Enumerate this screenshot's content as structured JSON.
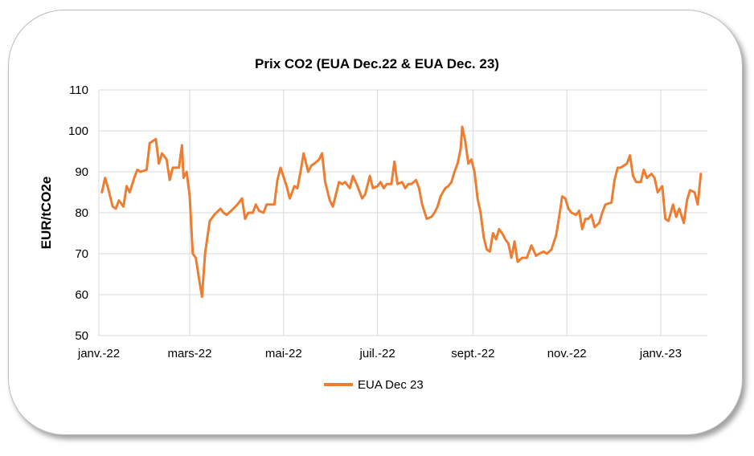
{
  "chart_data": {
    "type": "line",
    "title": "Prix CO2 (EUA Dec.22 & EUA Dec. 23)",
    "xlabel": "",
    "ylabel": "EUR/tCO2e",
    "ylim": [
      50,
      110
    ],
    "yticks": [
      "50",
      "60",
      "70",
      "80",
      "90",
      "100",
      "110"
    ],
    "xticks": [
      {
        "label": "janv.-22",
        "date": "2022-01-01"
      },
      {
        "label": "mars-22",
        "date": "2022-03-01"
      },
      {
        "label": "mai-22",
        "date": "2022-05-01"
      },
      {
        "label": "juil.-22",
        "date": "2022-07-01"
      },
      {
        "label": "sept.-22",
        "date": "2022-09-01"
      },
      {
        "label": "nov.-22",
        "date": "2022-11-01"
      },
      {
        "label": "janv.-23",
        "date": "2023-01-01"
      }
    ],
    "grid": true,
    "legend_position": "bottom",
    "series": [
      {
        "name": "EUA Dec 23",
        "color": "#ed7d31",
        "points": [
          [
            "2022-01-03",
            85
          ],
          [
            "2022-01-05",
            88.5
          ],
          [
            "2022-01-07",
            86
          ],
          [
            "2022-01-10",
            81.5
          ],
          [
            "2022-01-12",
            81
          ],
          [
            "2022-01-14",
            83
          ],
          [
            "2022-01-17",
            81.5
          ],
          [
            "2022-01-19",
            86.5
          ],
          [
            "2022-01-21",
            85
          ],
          [
            "2022-01-24",
            88.5
          ],
          [
            "2022-01-26",
            90.5
          ],
          [
            "2022-01-28",
            90
          ],
          [
            "2022-02-01",
            90.5
          ],
          [
            "2022-02-03",
            97
          ],
          [
            "2022-02-07",
            98
          ],
          [
            "2022-02-09",
            92
          ],
          [
            "2022-02-11",
            94.5
          ],
          [
            "2022-02-14",
            93
          ],
          [
            "2022-02-16",
            88
          ],
          [
            "2022-02-18",
            91
          ],
          [
            "2022-02-22",
            91
          ],
          [
            "2022-02-24",
            96.5
          ],
          [
            "2022-02-25",
            88.5
          ],
          [
            "2022-02-27",
            90
          ],
          [
            "2022-03-01",
            84
          ],
          [
            "2022-03-03",
            70
          ],
          [
            "2022-03-05",
            69
          ],
          [
            "2022-03-07",
            64
          ],
          [
            "2022-03-09",
            59.5
          ],
          [
            "2022-03-11",
            70
          ],
          [
            "2022-03-14",
            78
          ],
          [
            "2022-03-17",
            79.5
          ],
          [
            "2022-03-21",
            81
          ],
          [
            "2022-03-23",
            80
          ],
          [
            "2022-03-25",
            79.5
          ],
          [
            "2022-03-28",
            80.5
          ],
          [
            "2022-04-01",
            82
          ],
          [
            "2022-04-04",
            83.5
          ],
          [
            "2022-04-06",
            78.5
          ],
          [
            "2022-04-08",
            80
          ],
          [
            "2022-04-11",
            80
          ],
          [
            "2022-04-13",
            82
          ],
          [
            "2022-04-15",
            80.5
          ],
          [
            "2022-04-18",
            80
          ],
          [
            "2022-04-20",
            82
          ],
          [
            "2022-04-22",
            82
          ],
          [
            "2022-04-25",
            82
          ],
          [
            "2022-04-27",
            88
          ],
          [
            "2022-04-29",
            91
          ],
          [
            "2022-05-03",
            86.5
          ],
          [
            "2022-05-05",
            83.5
          ],
          [
            "2022-05-08",
            86.5
          ],
          [
            "2022-05-10",
            86
          ],
          [
            "2022-05-12",
            90
          ],
          [
            "2022-05-14",
            94.5
          ],
          [
            "2022-05-17",
            90
          ],
          [
            "2022-05-19",
            91.5
          ],
          [
            "2022-05-21",
            92
          ],
          [
            "2022-05-24",
            93
          ],
          [
            "2022-05-26",
            94.5
          ],
          [
            "2022-05-28",
            87.5
          ],
          [
            "2022-05-31",
            83
          ],
          [
            "2022-06-02",
            81.5
          ],
          [
            "2022-06-04",
            84.5
          ],
          [
            "2022-06-06",
            87.5
          ],
          [
            "2022-06-08",
            87
          ],
          [
            "2022-06-10",
            87.5
          ],
          [
            "2022-06-13",
            86
          ],
          [
            "2022-06-15",
            89
          ],
          [
            "2022-06-18",
            86.5
          ],
          [
            "2022-06-21",
            83.5
          ],
          [
            "2022-06-23",
            84.5
          ],
          [
            "2022-06-26",
            89
          ],
          [
            "2022-06-28",
            86
          ],
          [
            "2022-07-01",
            86.5
          ],
          [
            "2022-07-03",
            87.5
          ],
          [
            "2022-07-05",
            86
          ],
          [
            "2022-07-07",
            87
          ],
          [
            "2022-07-10",
            87
          ],
          [
            "2022-07-12",
            92.5
          ],
          [
            "2022-07-14",
            87
          ],
          [
            "2022-07-17",
            87.5
          ],
          [
            "2022-07-19",
            86
          ],
          [
            "2022-07-21",
            87
          ],
          [
            "2022-07-23",
            87
          ],
          [
            "2022-07-26",
            88
          ],
          [
            "2022-07-28",
            86
          ],
          [
            "2022-07-30",
            82
          ],
          [
            "2022-08-02",
            78.5
          ],
          [
            "2022-08-05",
            79
          ],
          [
            "2022-08-07",
            80
          ],
          [
            "2022-08-09",
            81.5
          ],
          [
            "2022-08-11",
            84
          ],
          [
            "2022-08-14",
            86
          ],
          [
            "2022-08-16",
            86.5
          ],
          [
            "2022-08-18",
            87.5
          ],
          [
            "2022-08-20",
            90
          ],
          [
            "2022-08-22",
            92
          ],
          [
            "2022-08-24",
            95.5
          ],
          [
            "2022-08-25",
            101
          ],
          [
            "2022-08-27",
            97.5
          ],
          [
            "2022-08-29",
            92
          ],
          [
            "2022-08-31",
            93
          ],
          [
            "2022-09-02",
            90
          ],
          [
            "2022-09-04",
            83.5
          ],
          [
            "2022-09-06",
            80
          ],
          [
            "2022-09-08",
            74
          ],
          [
            "2022-09-10",
            71
          ],
          [
            "2022-09-12",
            70.5
          ],
          [
            "2022-09-14",
            75
          ],
          [
            "2022-09-16",
            73.5
          ],
          [
            "2022-09-18",
            76
          ],
          [
            "2022-09-20",
            75
          ],
          [
            "2022-09-22",
            73.5
          ],
          [
            "2022-09-24",
            72.5
          ],
          [
            "2022-09-26",
            69
          ],
          [
            "2022-09-28",
            73
          ],
          [
            "2022-09-30",
            68
          ],
          [
            "2022-10-03",
            69
          ],
          [
            "2022-10-06",
            69
          ],
          [
            "2022-10-09",
            72
          ],
          [
            "2022-10-12",
            69.5
          ],
          [
            "2022-10-14",
            70
          ],
          [
            "2022-10-17",
            70.5
          ],
          [
            "2022-10-19",
            70
          ],
          [
            "2022-10-22",
            71
          ],
          [
            "2022-10-25",
            74.5
          ],
          [
            "2022-10-27",
            79
          ],
          [
            "2022-10-29",
            84
          ],
          [
            "2022-10-31",
            83.5
          ],
          [
            "2022-11-02",
            81
          ],
          [
            "2022-11-04",
            80
          ],
          [
            "2022-11-07",
            79.5
          ],
          [
            "2022-11-09",
            80.5
          ],
          [
            "2022-11-11",
            76
          ],
          [
            "2022-11-13",
            78.5
          ],
          [
            "2022-11-15",
            78.5
          ],
          [
            "2022-11-17",
            79.5
          ],
          [
            "2022-11-19",
            76.5
          ],
          [
            "2022-11-22",
            77.5
          ],
          [
            "2022-11-24",
            80
          ],
          [
            "2022-11-26",
            82
          ],
          [
            "2022-11-30",
            82.5
          ],
          [
            "2022-12-02",
            88
          ],
          [
            "2022-12-04",
            91
          ],
          [
            "2022-12-06",
            91
          ],
          [
            "2022-12-08",
            91.5
          ],
          [
            "2022-12-10",
            92
          ],
          [
            "2022-12-12",
            94
          ],
          [
            "2022-12-14",
            89
          ],
          [
            "2022-12-16",
            87.5
          ],
          [
            "2022-12-19",
            87.5
          ],
          [
            "2022-12-21",
            90.5
          ],
          [
            "2022-12-23",
            88.5
          ],
          [
            "2022-12-26",
            89.5
          ],
          [
            "2022-12-28",
            88.5
          ],
          [
            "2022-12-30",
            85
          ],
          [
            "2023-01-02",
            86.5
          ],
          [
            "2023-01-04",
            78.5
          ],
          [
            "2023-01-06",
            78
          ],
          [
            "2023-01-09",
            82
          ],
          [
            "2023-01-11",
            79
          ],
          [
            "2023-01-13",
            81
          ],
          [
            "2023-01-16",
            77.5
          ],
          [
            "2023-01-18",
            83
          ],
          [
            "2023-01-20",
            85.5
          ],
          [
            "2023-01-23",
            85
          ],
          [
            "2023-01-25",
            82
          ],
          [
            "2023-01-27",
            89.5
          ]
        ]
      }
    ]
  }
}
